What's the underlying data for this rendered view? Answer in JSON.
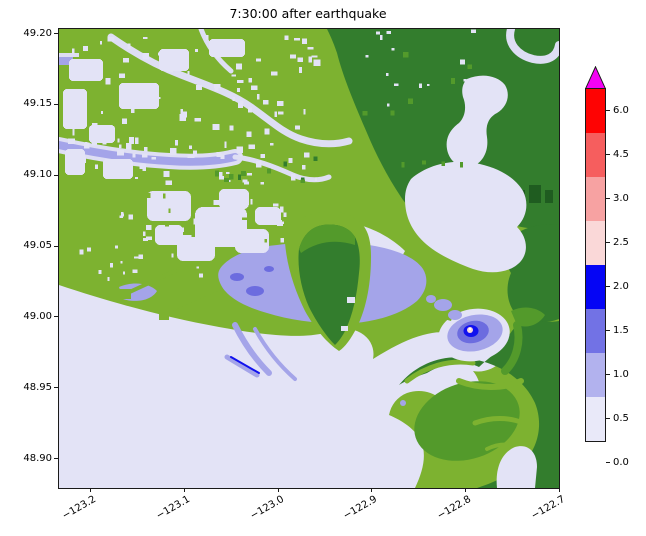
{
  "figure": {
    "title": "7:30:00 after earthquake"
  },
  "chart_data": {
    "type": "heatmap",
    "title": "7:30:00 after earthquake",
    "xlabel": "",
    "ylabel": "",
    "x_tick_labels": [
      "−123.2",
      "−123.1",
      "−123.0",
      "−122.9",
      "−122.8",
      "−122.7"
    ],
    "y_tick_labels": [
      "49.20",
      "49.15",
      "49.10",
      "49.05",
      "49.00",
      "48.95",
      "48.90"
    ],
    "x_range": [
      -123.23,
      -122.69
    ],
    "y_range": [
      48.88,
      49.2
    ],
    "x_tick_rotation_deg": 30,
    "grid": false,
    "legend_position": "right-colorbar",
    "colorbar": {
      "orientation": "vertical",
      "extend": "max",
      "boundaries": [
        0.0,
        0.5,
        1.0,
        1.5,
        2.0,
        2.5,
        3.0,
        4.5,
        6.0
      ],
      "tick_labels": [
        "0.0",
        "0.5",
        "1.0",
        "1.5",
        "2.0",
        "2.5",
        "3.0",
        "4.5",
        "6.0"
      ],
      "segment_colors": [
        "#e9e9f9",
        "#b2b2ee",
        "#7272e5",
        "#0505f5",
        "#fad8d8",
        "#f7a2a2",
        "#f65e5e",
        "#fe0303"
      ],
      "over_arrow_color": "#f402f4"
    },
    "palette": {
      "water_0_to_0p5": "#e3e3f6",
      "flood_0p5_to_1": "#a4a4e9",
      "flood_1_to_1p5": "#6c6cdf",
      "flood_1p5_to_2": "#1111ee",
      "flood_2_to_2p5": "#f7d8d8",
      "land_low": "#7db230",
      "land_mid": "#539a2b",
      "land_high": "#337d2d",
      "land_higher": "#1f5c20",
      "river_channel": "#dedef4"
    },
    "regions": [
      {
        "name": "open-water-and-bay",
        "value_range": [
          0.0,
          0.5
        ]
      },
      {
        "name": "estuary-flooding",
        "value_range": [
          0.5,
          1.0
        ]
      },
      {
        "name": "floodplain-patches-in-urban-land",
        "value_range": [
          0.0,
          0.5
        ]
      },
      {
        "name": "inundation-hotspot-rings",
        "value_range": [
          1.5,
          2.5
        ]
      },
      {
        "name": "river-channels",
        "value_range": [
          0.5,
          1.0
        ]
      },
      {
        "name": "upland-terrain-dry",
        "value_range": null
      },
      {
        "name": "lowland-terrain-dry",
        "value_range": null
      }
    ]
  }
}
